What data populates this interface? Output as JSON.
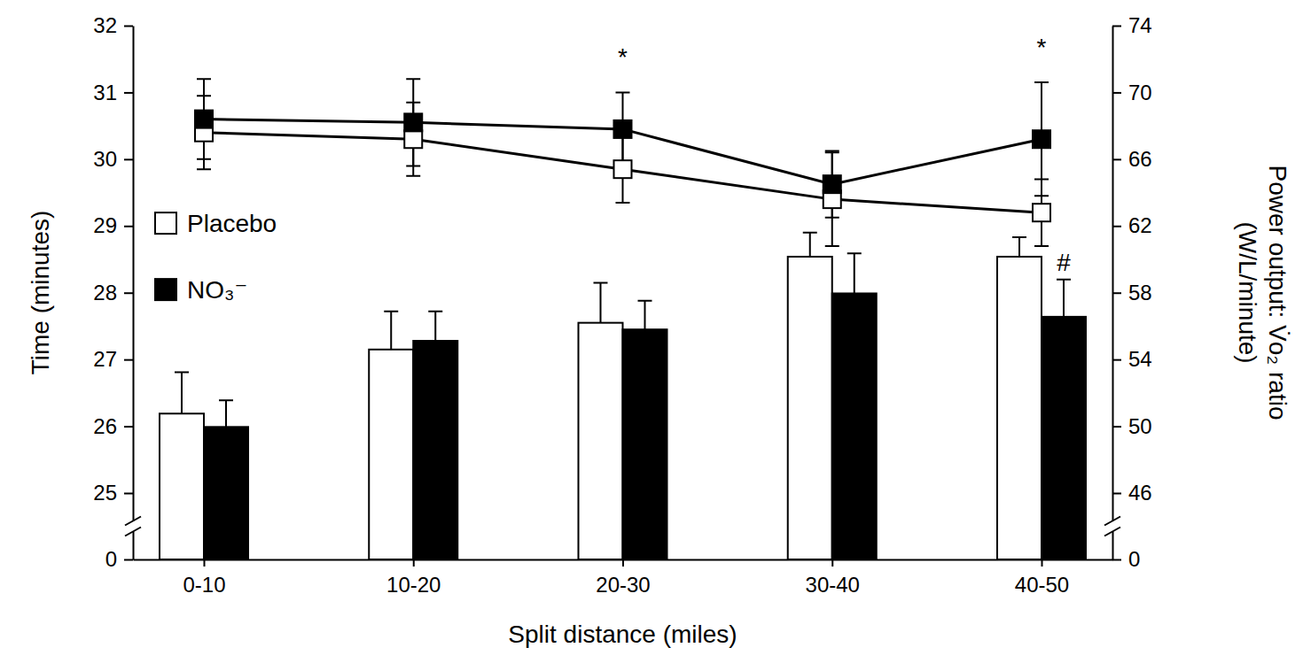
{
  "chart_data": {
    "type": "bar",
    "x_label": "Split distance (miles)",
    "y_label": "Time (minutes)",
    "y2_label": "Power output: V̇o₂ ratio (W/L/minute)",
    "categories": [
      "0-10",
      "10-20",
      "20-30",
      "30-40",
      "40-50"
    ],
    "series": [
      {
        "name": "Placebo",
        "type": "bar",
        "axis": "y",
        "color": "#ffffff",
        "values": [
          26.19,
          27.15,
          27.55,
          28.54,
          28.54
        ],
        "errors": [
          0.62,
          0.57,
          0.6,
          0.36,
          0.29
        ]
      },
      {
        "name": "NO₃⁻",
        "type": "bar",
        "axis": "y",
        "color": "#000000",
        "values": [
          25.99,
          27.28,
          27.45,
          27.99,
          27.64
        ],
        "errors": [
          0.4,
          0.44,
          0.43,
          0.6,
          0.56
        ]
      },
      {
        "name": "Placebo",
        "type": "line",
        "axis": "y2",
        "color": "#ffffff",
        "marker": "square",
        "line_style": "solid",
        "values": [
          67.6,
          67.2,
          65.4,
          63.6,
          62.8
        ],
        "errors": [
          2.2,
          2.2,
          2.0,
          2.8,
          2.0
        ]
      },
      {
        "name": "NO₃⁻",
        "type": "line",
        "axis": "y2",
        "color": "#000000",
        "marker": "square",
        "line_style": "solid",
        "values": [
          68.4,
          68.2,
          67.8,
          64.5,
          67.2
        ],
        "errors": [
          2.4,
          2.6,
          2.2,
          2.0,
          3.4
        ]
      }
    ],
    "ylim": [
      0,
      32
    ],
    "yticks": [
      0,
      25,
      26,
      27,
      28,
      29,
      30,
      31,
      32
    ],
    "y2lim": [
      0,
      74
    ],
    "y2ticks": [
      0,
      46,
      50,
      54,
      58,
      62,
      66,
      70,
      74
    ],
    "legend": "left",
    "annotations": [
      {
        "text": "*",
        "category": "20-30",
        "series": "NO₃⁻",
        "axis": "y2"
      },
      {
        "text": "*",
        "category": "40-50",
        "series": "NO₃⁻",
        "axis": "y2"
      },
      {
        "text": "#",
        "category": "40-50",
        "series": "NO₃⁻",
        "axis": "y"
      }
    ]
  }
}
